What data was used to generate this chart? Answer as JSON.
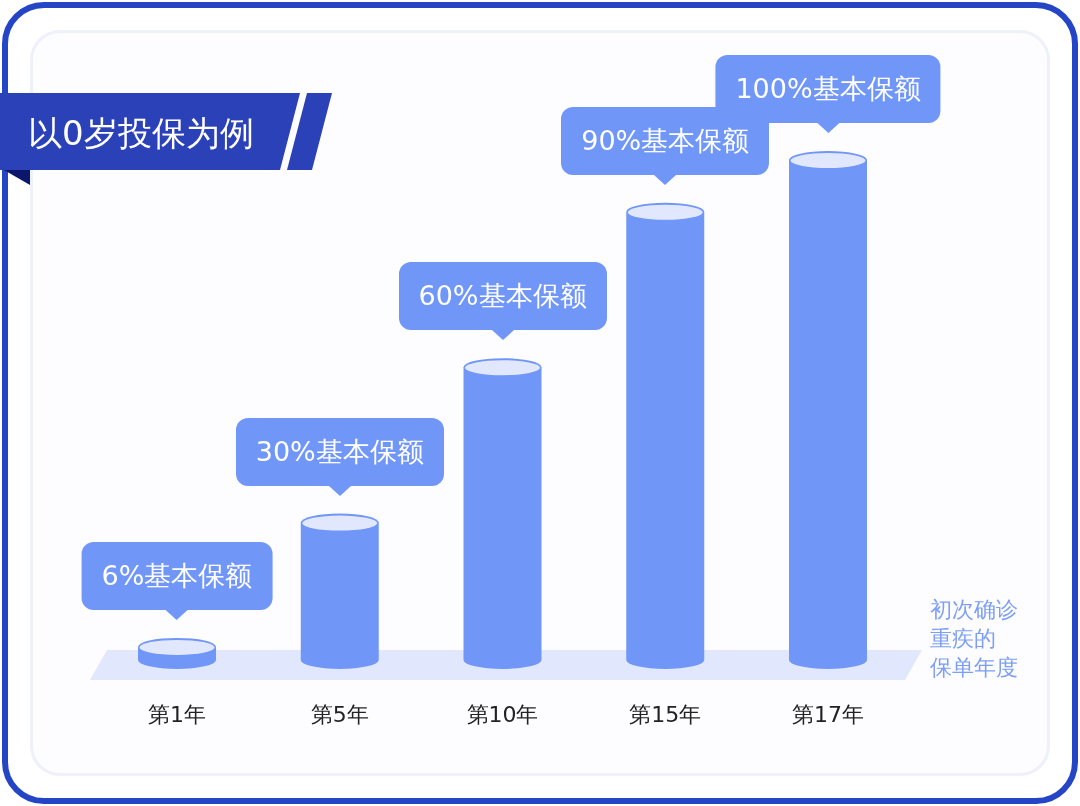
{
  "chart_data": {
    "type": "bar",
    "title": "以0岁投保为例",
    "categories": [
      "第1年",
      "第5年",
      "第10年",
      "第15年",
      "第17年"
    ],
    "values": [
      6,
      30,
      60,
      90,
      100
    ],
    "value_labels": [
      "6%基本保额",
      "30%基本保额",
      "60%基本保额",
      "90%基本保额",
      "100%基本保额"
    ],
    "xlabel": "初次确诊重疾的保单年度",
    "color": "#7096f8"
  }
}
